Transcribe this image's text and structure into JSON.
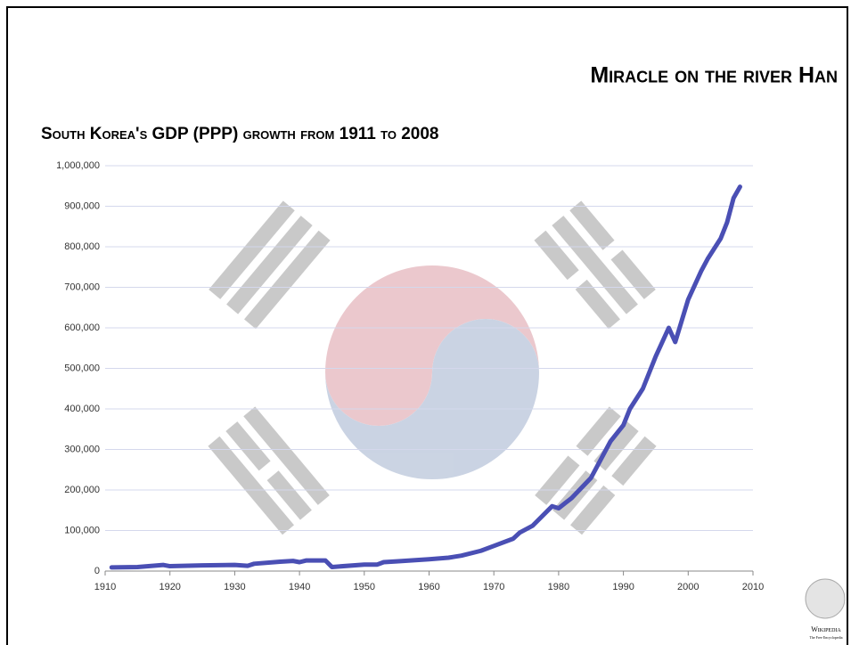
{
  "slide_title": "Miracle on the river Han",
  "logo": {
    "name": "Wikipedia",
    "tagline": "The Free Encyclopedia"
  },
  "chart_data": {
    "type": "line",
    "title": "South Korea's GDP (PPP) growth from 1911 to 2008",
    "x": [
      1911,
      1915,
      1919,
      1920,
      1925,
      1930,
      1932,
      1933,
      1937,
      1939,
      1940,
      1941,
      1944,
      1945,
      1950,
      1952,
      1953,
      1955,
      1960,
      1963,
      1965,
      1968,
      1970,
      1973,
      1974,
      1976,
      1979,
      1980,
      1982,
      1985,
      1988,
      1990,
      1991,
      1993,
      1995,
      1997,
      1998,
      2000,
      2002,
      2003,
      2005,
      2006,
      2007,
      2008
    ],
    "values": [
      9000,
      10000,
      15000,
      12000,
      14000,
      15000,
      13000,
      18000,
      23000,
      25000,
      22000,
      26000,
      26000,
      10000,
      16000,
      16000,
      22000,
      24000,
      29000,
      33000,
      38000,
      50000,
      62000,
      80000,
      95000,
      112000,
      160000,
      155000,
      180000,
      230000,
      320000,
      360000,
      400000,
      450000,
      530000,
      600000,
      565000,
      670000,
      740000,
      770000,
      820000,
      860000,
      920000,
      948000
    ],
    "color": "#4a4fb4",
    "xlim": [
      1910,
      2010
    ],
    "xticks": [
      1910,
      1920,
      1930,
      1940,
      1950,
      1960,
      1970,
      1980,
      1990,
      2000,
      2010
    ],
    "ylim": [
      0,
      1000000
    ],
    "yticks": [
      0,
      {
        "value": 100000,
        "label": "100,000"
      },
      {
        "value": 200000,
        "label": "200,000"
      },
      {
        "value": 300000,
        "label": "300,000"
      },
      {
        "value": 400000,
        "label": "400,000"
      },
      {
        "value": 500000,
        "label": "500,000"
      },
      {
        "value": 600000,
        "label": "600,000"
      },
      {
        "value": 700000,
        "label": "700,000"
      },
      {
        "value": 800000,
        "label": "800,000"
      },
      {
        "value": 900000,
        "label": "900,000"
      },
      {
        "value": 1000000,
        "label": "1,000,000"
      }
    ],
    "grid": true
  }
}
